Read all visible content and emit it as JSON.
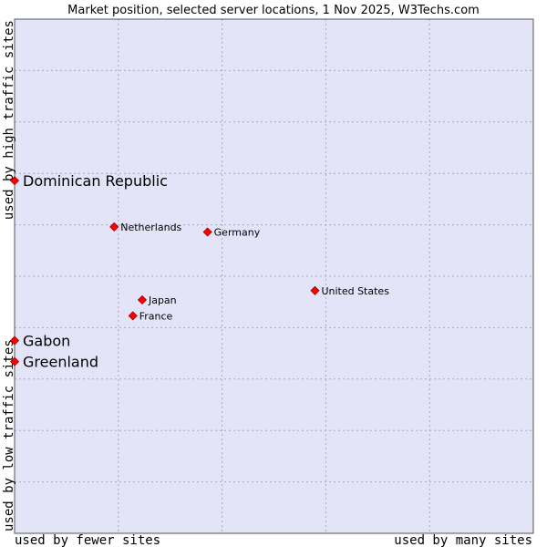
{
  "chart_data": {
    "type": "scatter",
    "title": "Market position, selected server locations, 1 Nov 2025, W3Techs.com",
    "xlabel_low": "used by fewer sites",
    "xlabel_high": "used by many sites",
    "ylabel_low": "used by low traffic sites",
    "ylabel_high": "used by high traffic sites",
    "xlim": [
      0,
      100
    ],
    "ylim": [
      0,
      100
    ],
    "grid": true,
    "colors": {
      "plot_background": "#e4e4f8",
      "grid": "#a8a8c0",
      "point": "#ff0000",
      "point_edge": "#990000"
    },
    "points": [
      {
        "label": "Dominican Republic",
        "x": 0,
        "y": 68.6,
        "emphasis": true
      },
      {
        "label": "Netherlands",
        "x": 19.2,
        "y": 59.6,
        "emphasis": false
      },
      {
        "label": "Germany",
        "x": 37.2,
        "y": 58.6,
        "emphasis": false
      },
      {
        "label": "United States",
        "x": 57.9,
        "y": 47.2,
        "emphasis": false
      },
      {
        "label": "Japan",
        "x": 24.6,
        "y": 45.4,
        "emphasis": false
      },
      {
        "label": "France",
        "x": 22.8,
        "y": 42.3,
        "emphasis": false
      },
      {
        "label": "Gabon",
        "x": 0,
        "y": 37.5,
        "emphasis": true
      },
      {
        "label": "Greenland",
        "x": 0,
        "y": 33.4,
        "emphasis": true
      }
    ]
  }
}
